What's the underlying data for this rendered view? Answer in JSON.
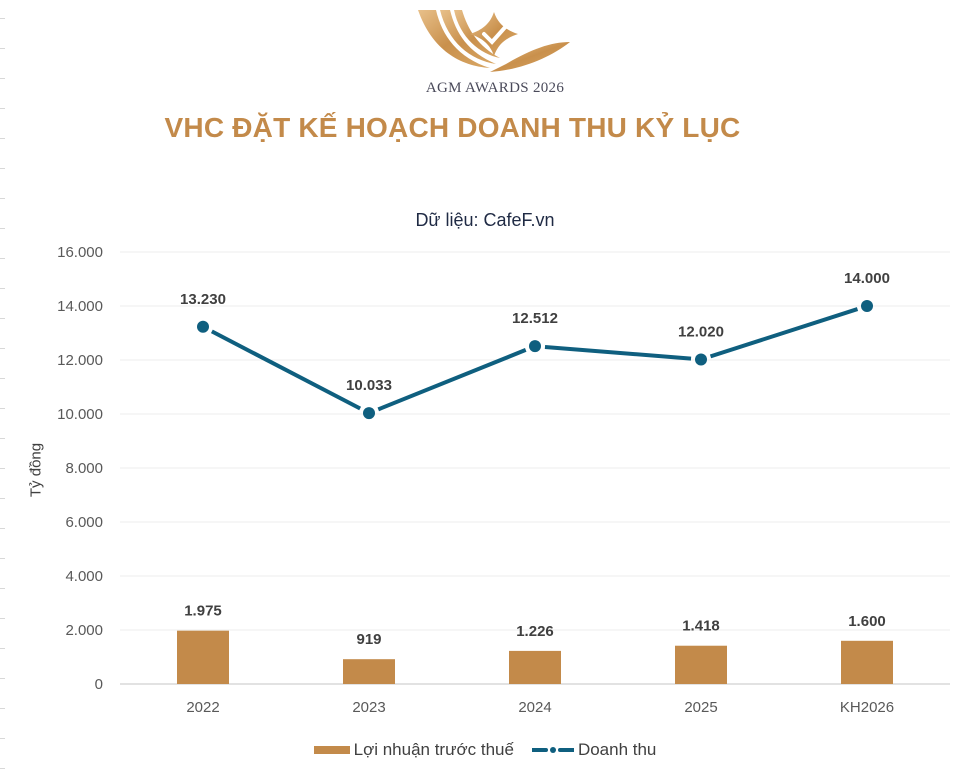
{
  "header": {
    "logo_text": "AGM AWARDS 2026",
    "title": "VHC ĐẶT KẾ HOẠCH DOANH THU KỶ LỤC",
    "subtitle": "Dữ liệu: CafeF.vn"
  },
  "colors": {
    "bar": "#c38a4a",
    "line": "#0f5f7f",
    "title": "#c38a4a",
    "gridline": "#ececec"
  },
  "chart_data": {
    "type": "bar+line",
    "title": "VHC ĐẶT KẾ HOẠCH DOANH THU KỶ LỤC",
    "subtitle": "Dữ liệu: CafeF.vn",
    "xlabel": "",
    "ylabel": "Tỷ đồng",
    "ylim": [
      0,
      16000
    ],
    "yticks": [
      "0",
      "2.000",
      "4.000",
      "6.000",
      "8.000",
      "10.000",
      "12.000",
      "14.000",
      "16.000"
    ],
    "ytick_values": [
      0,
      2000,
      4000,
      6000,
      8000,
      10000,
      12000,
      14000,
      16000
    ],
    "grid": true,
    "legend_position": "bottom",
    "categories": [
      "2022",
      "2023",
      "2024",
      "2025",
      "KH2026"
    ],
    "series": [
      {
        "name": "Lợi nhuận trước thuế",
        "type": "bar",
        "values": [
          1975,
          919,
          1226,
          1418,
          1600
        ],
        "labels": [
          "1.975",
          "919",
          "1.226",
          "1.418",
          "1.600"
        ]
      },
      {
        "name": "Doanh thu",
        "type": "line",
        "values": [
          13230,
          10033,
          12512,
          12020,
          14000
        ],
        "labels": [
          "13.230",
          "10.033",
          "12.512",
          "12.020",
          "14.000"
        ]
      }
    ]
  },
  "legend": {
    "items": [
      {
        "label": "Lợi nhuận trước thuế",
        "icon": "bar-swatch-icon"
      },
      {
        "label": "Doanh thu",
        "icon": "line-marker-swatch-icon"
      }
    ]
  }
}
